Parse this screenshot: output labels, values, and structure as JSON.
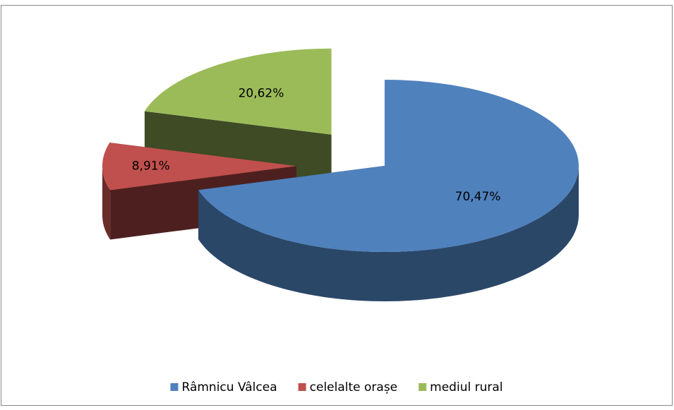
{
  "chart_data": {
    "type": "pie",
    "categories": [
      "Râmnicu Vâlcea",
      "celelalte orașe",
      "mediul rural"
    ],
    "values": [
      70.47,
      8.91,
      20.62
    ],
    "value_labels": [
      "70,47%",
      "8,91%",
      "20,62%"
    ],
    "colors": [
      "#4f81bd",
      "#c0504d",
      "#9bbb59"
    ],
    "legend": "bottom"
  }
}
